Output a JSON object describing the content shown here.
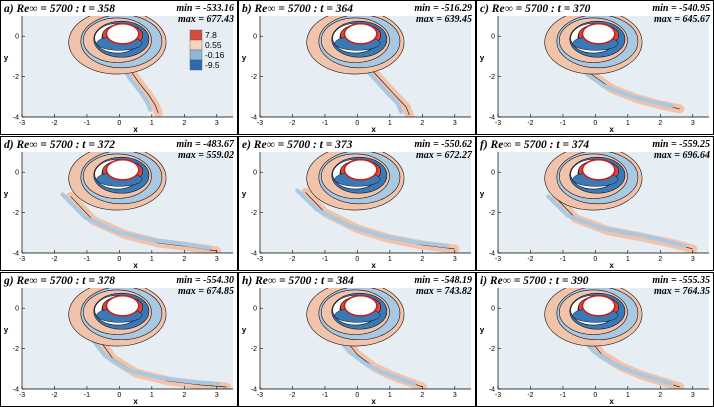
{
  "chart_data": {
    "type": "contour",
    "grid": {
      "rows": 3,
      "cols": 3
    },
    "colors": {
      "background": "#e6eef4",
      "positive": "#d64b3c",
      "positive_light": "#f2c3ab",
      "negative": "#3b78b6",
      "negative_light": "#a9c8e2",
      "cylinder_edge": "#c81e1e"
    },
    "legend": {
      "placement": "inside-top-right-of-panel-a",
      "levels": [
        "7.8",
        "0.55",
        "-0.16",
        "-9.5"
      ],
      "level_colors": [
        "#d64b3c",
        "#f4d3c0",
        "#8fb7dc",
        "#2f6aaa"
      ]
    },
    "panels": [
      {
        "id": "a",
        "title": "a) Re∞ = 5700 : t = 358",
        "min": "min = -533.16",
        "max": "max = 677.43",
        "xlabel": "x",
        "ylabel": "y",
        "xlim": [
          -3,
          3.5
        ],
        "ylim": [
          -4,
          1
        ],
        "xticks": [
          "-3",
          "-2",
          "-1",
          "0",
          "1",
          "2",
          "3"
        ],
        "yticks": [
          "-4",
          "-2",
          "0"
        ],
        "tail": {
          "x": [
            0.1,
            0.3,
            0.6,
            0.9,
            1.1,
            1.2
          ],
          "y": [
            -0.8,
            -1.6,
            -2.3,
            -2.9,
            -3.4,
            -3.8
          ]
        }
      },
      {
        "id": "b",
        "title": "b) Re∞ = 5700 : t = 364",
        "min": "min = -516.29",
        "max": "max = 639.45",
        "xlabel": "x",
        "ylabel": "y",
        "xlim": [
          -3,
          3.5
        ],
        "ylim": [
          -4,
          1
        ],
        "xticks": [
          "-3",
          "-2",
          "-1",
          "0",
          "1",
          "2",
          "3"
        ],
        "yticks": [
          "-4",
          "-2",
          "0"
        ],
        "tail": {
          "x": [
            0.1,
            0.4,
            0.8,
            1.2,
            1.5,
            1.6
          ],
          "y": [
            -0.8,
            -1.6,
            -2.3,
            -3.0,
            -3.5,
            -3.9
          ]
        }
      },
      {
        "id": "c",
        "title": "c) Re∞ = 5700 : t = 370",
        "min": "min = -540.95",
        "max": "max = 645.67",
        "xlabel": "x",
        "ylabel": "y",
        "xlim": [
          -3,
          3.5
        ],
        "ylim": [
          -4,
          1
        ],
        "xticks": [
          "-3",
          "-2",
          "-1",
          "0",
          "1",
          "2",
          "3"
        ],
        "yticks": [
          "-4",
          "-2",
          "0"
        ],
        "tail": {
          "x": [
            -0.5,
            -0.2,
            0.5,
            1.3,
            2.0,
            2.6
          ],
          "y": [
            -0.9,
            -1.8,
            -2.6,
            -3.1,
            -3.4,
            -3.6
          ]
        }
      },
      {
        "id": "d",
        "title": "d) Re∞ = 5700 : t = 372",
        "min": "min = -483.67",
        "max": "max = 559.02",
        "xlabel": "x",
        "ylabel": "y",
        "xlim": [
          -3,
          3.5
        ],
        "ylim": [
          -4,
          1
        ],
        "xticks": [
          "-3",
          "-2",
          "-1",
          "0",
          "1",
          "2",
          "3"
        ],
        "yticks": [
          "-4",
          "-2",
          "0"
        ],
        "tail": {
          "x": [
            -1.5,
            -0.8,
            0.2,
            1.2,
            2.2,
            3.0
          ],
          "y": [
            -1.2,
            -2.4,
            -3.1,
            -3.5,
            -3.7,
            -3.9
          ]
        }
      },
      {
        "id": "e",
        "title": "e) Re∞ = 5700 : t = 373",
        "min": "min = -550.62",
        "max": "max = 672.27",
        "xlabel": "x",
        "ylabel": "y",
        "xlim": [
          -3,
          3.5
        ],
        "ylim": [
          -4,
          1
        ],
        "xticks": [
          "-3",
          "-2",
          "-1",
          "0",
          "1",
          "2",
          "3"
        ],
        "yticks": [
          "-4",
          "-2",
          "0"
        ],
        "tail": {
          "x": [
            -1.6,
            -1.0,
            0.0,
            1.0,
            2.0,
            3.0
          ],
          "y": [
            -1.0,
            -2.0,
            -2.8,
            -3.3,
            -3.6,
            -3.8
          ]
        }
      },
      {
        "id": "f",
        "title": "f) Re∞ = 5700 : t = 374",
        "min": "min = -559.25",
        "max": "max = 696.64",
        "xlabel": "x",
        "ylabel": "y",
        "xlim": [
          -3,
          3.5
        ],
        "ylim": [
          -4,
          1
        ],
        "xticks": [
          "-3",
          "-2",
          "-1",
          "0",
          "1",
          "2",
          "3"
        ],
        "yticks": [
          "-4",
          "-2",
          "0"
        ],
        "tail": {
          "x": [
            -1.2,
            -0.6,
            0.4,
            1.4,
            2.3,
            3.0
          ],
          "y": [
            -1.3,
            -2.3,
            -2.9,
            -3.2,
            -3.5,
            -3.8
          ]
        }
      },
      {
        "id": "g",
        "title": "g) Re∞ = 5700 : t = 378",
        "min": "min = -554.30",
        "max": "max = 674.85",
        "xlabel": "x",
        "ylabel": "y",
        "xlim": [
          -3,
          3.5
        ],
        "ylim": [
          -4,
          1
        ],
        "xticks": [
          "-3",
          "-2",
          "-1",
          "0",
          "1",
          "2",
          "3"
        ],
        "yticks": [
          "-4",
          "-2",
          "0"
        ],
        "tail": {
          "x": [
            -0.6,
            -0.2,
            0.5,
            1.5,
            2.5,
            3.3
          ],
          "y": [
            -1.6,
            -2.5,
            -3.2,
            -3.6,
            -3.8,
            -3.9
          ]
        }
      },
      {
        "id": "h",
        "title": "h) Re∞ = 5700 : t = 384",
        "min": "min = -548.19",
        "max": "max = 743.82",
        "xlabel": "x",
        "ylabel": "y",
        "xlim": [
          -3,
          3.5
        ],
        "ylim": [
          -4,
          1
        ],
        "xticks": [
          "-3",
          "-2",
          "-1",
          "0",
          "1",
          "2",
          "3"
        ],
        "yticks": [
          "-4",
          "-2",
          "0"
        ],
        "tail": {
          "x": [
            -0.4,
            0.0,
            0.5,
            1.0,
            1.5,
            2.0
          ],
          "y": [
            -1.5,
            -2.3,
            -2.9,
            -3.3,
            -3.6,
            -3.9
          ]
        }
      },
      {
        "id": "i",
        "title": "i) Re∞ = 5700 : t = 390",
        "min": "min = -555.35",
        "max": "max = 764.35",
        "xlabel": "x",
        "ylabel": "y",
        "xlim": [
          -3,
          3.5
        ],
        "ylim": [
          -4,
          1
        ],
        "xticks": [
          "-3",
          "-2",
          "-1",
          "0",
          "1",
          "2",
          "3"
        ],
        "yticks": [
          "-4",
          "-2",
          "0"
        ],
        "tail": {
          "x": [
            -0.2,
            0.2,
            0.8,
            1.4,
            2.0,
            2.6
          ],
          "y": [
            -1.5,
            -2.3,
            -2.9,
            -3.3,
            -3.6,
            -3.9
          ]
        }
      }
    ]
  }
}
